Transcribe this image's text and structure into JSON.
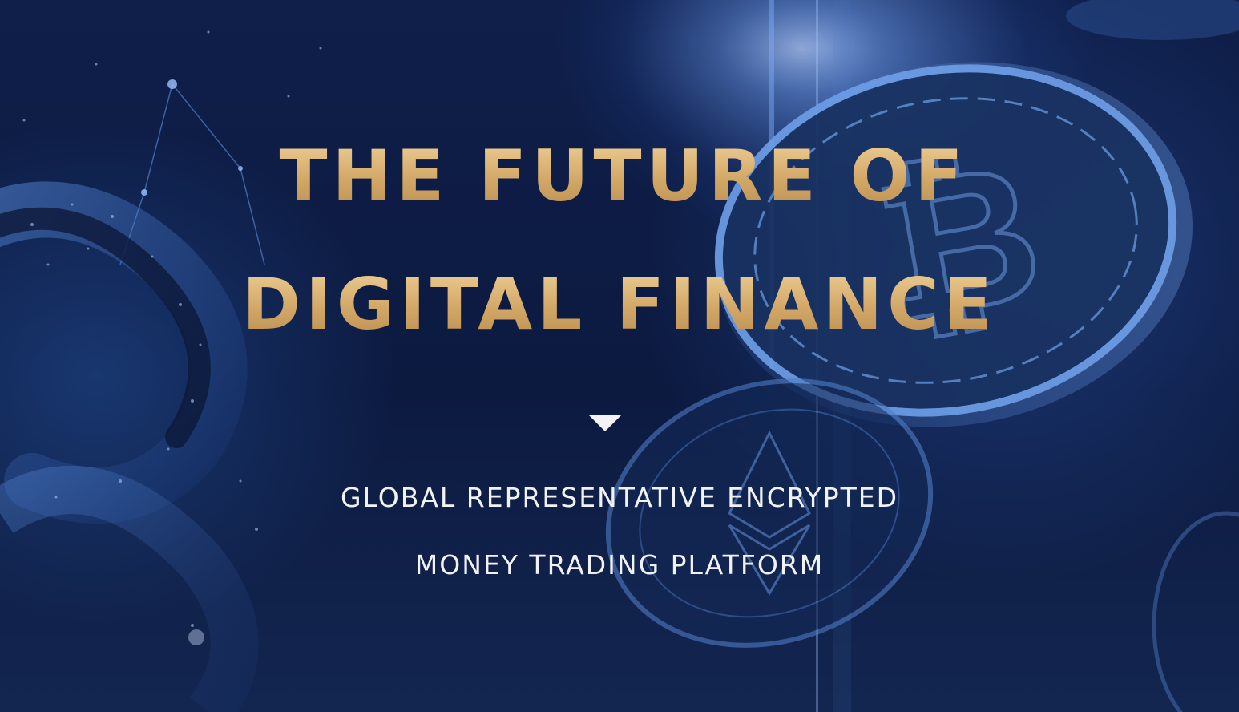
{
  "hero": {
    "headline_line1": "THE FUTURE OF",
    "headline_line2": "DIGITAL FINANCE",
    "scroll_indicator_icon": "triangle-down-icon",
    "subheadline_line1": "GLOBAL REPRESENTATIVE ENCRYPTED",
    "subheadline_line2": "MONEY TRADING PLATFORM"
  },
  "colors": {
    "background": "#0d1a3d",
    "headline_gold": "#d8b06e",
    "subheadline_white": "#f1f2f6",
    "accent_blue": "#5b8fe0"
  },
  "imagery": {
    "coin_icon": "bitcoin-coin-icon",
    "secondary_coin_icon": "ethereum-coin-icon",
    "chain_icon": "chain-link-icon"
  }
}
